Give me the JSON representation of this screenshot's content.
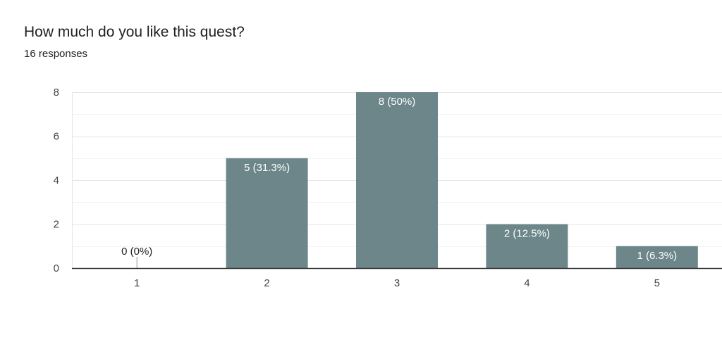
{
  "question": {
    "title": "How much do you like this quest?",
    "responses": "16 responses"
  },
  "colors": {
    "bar": "#6d8689",
    "grid": "#e6e6e6",
    "minor_grid": "#f2f2f2",
    "axis": "#333333",
    "label_inside": "#ffffff",
    "label_outside": "#222222"
  },
  "chart_data": {
    "type": "bar",
    "categories": [
      "1",
      "2",
      "3",
      "4",
      "5"
    ],
    "values": [
      0,
      5,
      8,
      2,
      1
    ],
    "data_labels": [
      "0 (0%)",
      "5 (31.3%)",
      "8 (50%)",
      "2 (12.5%)",
      "1 (6.3%)"
    ],
    "title": "How much do you like this quest?",
    "subtitle": "16 responses",
    "xlabel": "",
    "ylabel": "",
    "ylim": [
      0,
      8
    ],
    "yticks": [
      0,
      2,
      4,
      6,
      8
    ],
    "grid": true,
    "legend": "none"
  }
}
